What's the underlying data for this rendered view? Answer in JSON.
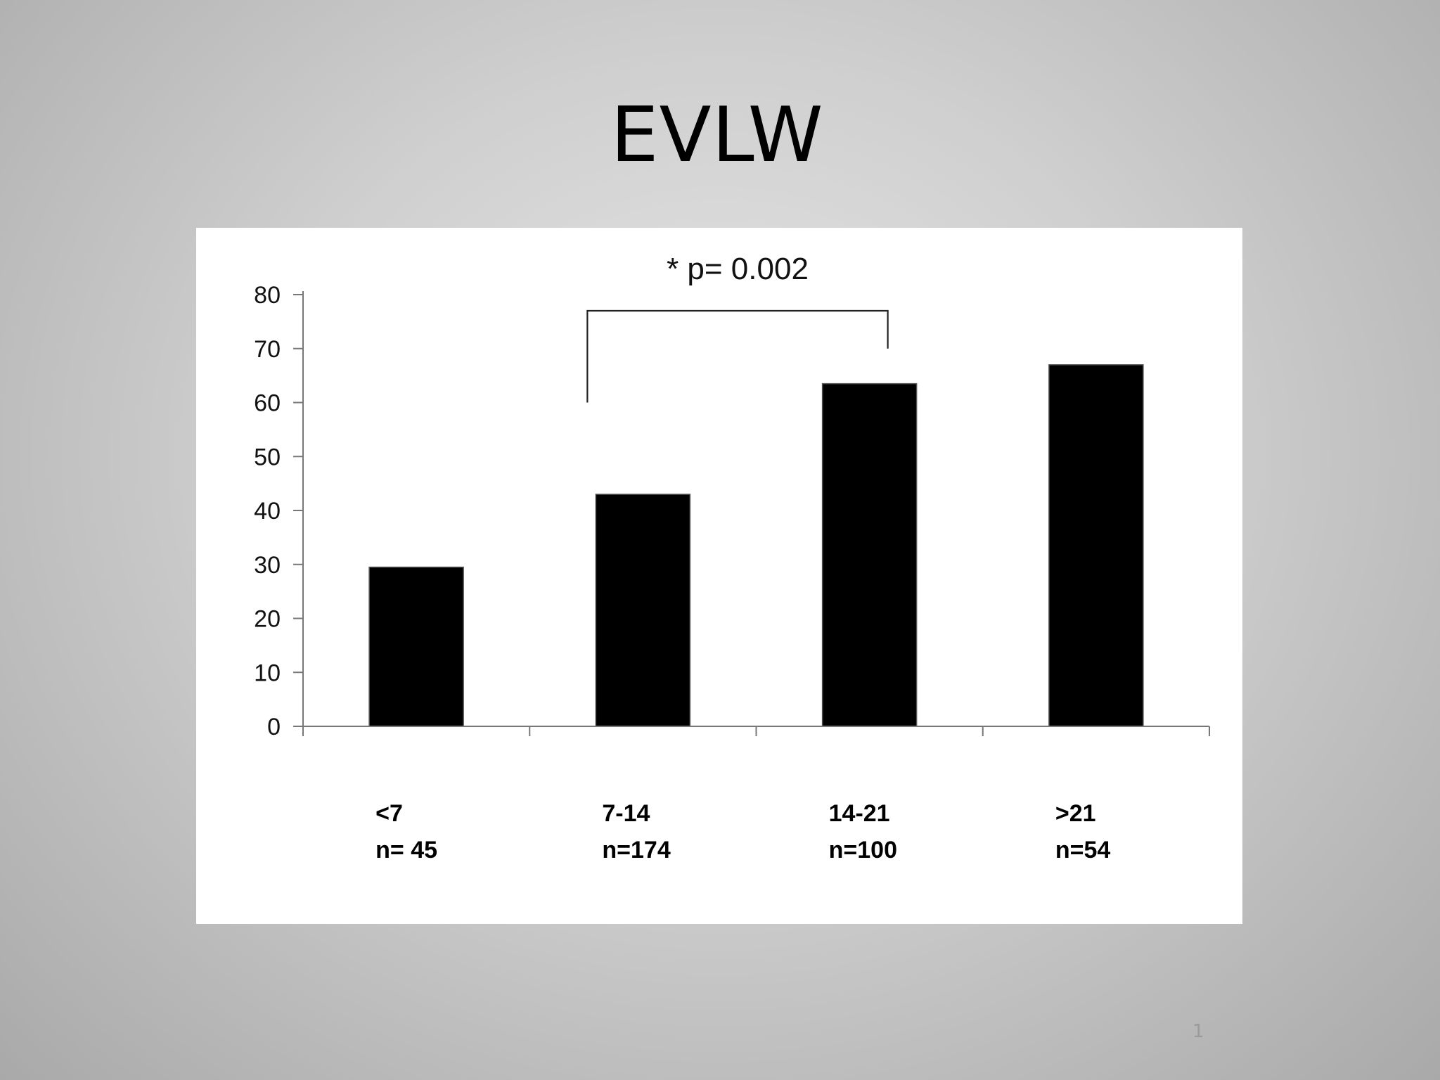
{
  "slide": {
    "title": "EVLW",
    "page_number": "1"
  },
  "chart_data": {
    "type": "bar",
    "categories": [
      "<7",
      "7-14",
      "14-21",
      ">21"
    ],
    "sample_sizes": [
      "n= 45",
      "n=174",
      "n=100",
      "n=54"
    ],
    "values": [
      29.5,
      43,
      63.5,
      67
    ],
    "ylim": [
      0,
      80
    ],
    "yticks": [
      0,
      10,
      20,
      30,
      40,
      50,
      60,
      70,
      80
    ],
    "xlabel": "",
    "ylabel": "",
    "grid": false,
    "bar_color": "#000000",
    "annotation": {
      "text": "* p= 0.002",
      "from_category": 1,
      "to_category": 2,
      "bracket_left_bottom": 60,
      "bracket_right_bottom": 70,
      "bracket_top": 77
    }
  }
}
